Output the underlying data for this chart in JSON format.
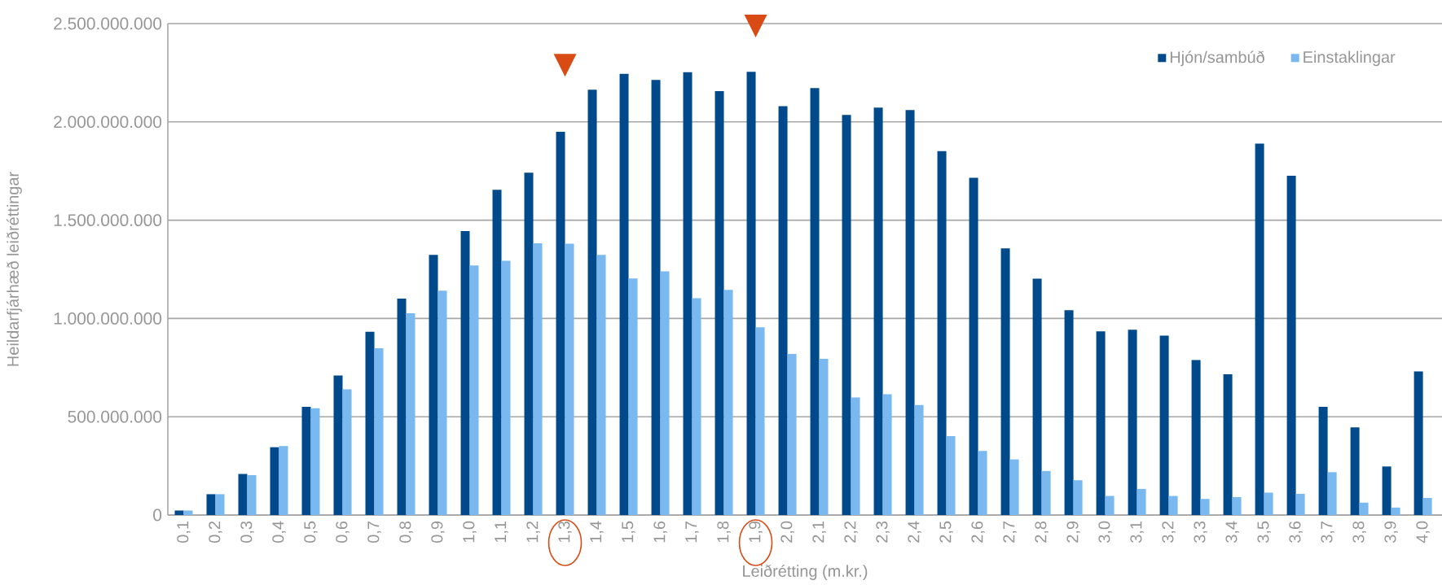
{
  "chart_data": {
    "type": "bar",
    "xlabel": "Leiðrétting (m.kr.)",
    "ylabel": "Heildarfjárhæð leiðréttingar",
    "categories": [
      "0,1",
      "0,2",
      "0,3",
      "0,4",
      "0,5",
      "0,6",
      "0,7",
      "0,8",
      "0,9",
      "1,0",
      "1,1",
      "1,2",
      "1,3",
      "1,4",
      "1,5",
      "1,6",
      "1,7",
      "1,8",
      "1,9",
      "2,0",
      "2,1",
      "2,2",
      "2,3",
      "2,4",
      "2,5",
      "2,6",
      "2,7",
      "2,8",
      "2,9",
      "3,0",
      "3,1",
      "3,2",
      "3,3",
      "3,4",
      "3,5",
      "3,6",
      "3,7",
      "3,8",
      "3,9",
      "4,0"
    ],
    "series": [
      {
        "name": "Hjón/sambúð",
        "color": "#004a8c",
        "values": [
          23000000,
          106000000,
          209000000,
          345000000,
          550000000,
          710000000,
          932000000,
          1101000000,
          1323000000,
          1445000000,
          1655000000,
          1741000000,
          1950000000,
          2164000000,
          2244000000,
          2213000000,
          2253000000,
          2156000000,
          2255000000,
          2080000000,
          2172000000,
          2035000000,
          2073000000,
          2060000000,
          1851000000,
          1716000000,
          1357000000,
          1202000000,
          1042000000,
          934000000,
          943000000,
          913000000,
          788000000,
          716000000,
          1889000000,
          1726000000,
          551000000,
          446000000,
          247000000,
          731000000
        ]
      },
      {
        "name": "Einstaklingar",
        "color": "#7ab8f0",
        "values": [
          23000000,
          106000000,
          203000000,
          351000000,
          543000000,
          640000000,
          849000000,
          1027000000,
          1141000000,
          1270000000,
          1293000000,
          1382000000,
          1380000000,
          1323000000,
          1203000000,
          1240000000,
          1103000000,
          1145000000,
          955000000,
          820000000,
          795000000,
          598000000,
          615000000,
          560000000,
          402000000,
          326000000,
          283000000,
          224000000,
          177000000,
          97000000,
          133000000,
          97000000,
          82000000,
          91000000,
          114000000,
          108000000,
          218000000,
          63000000,
          38000000,
          87000000
        ]
      }
    ],
    "ylim": [
      0,
      2500000000
    ],
    "yticks": [
      0,
      {
        "value": 500000000,
        "label": "500.000.000"
      },
      {
        "value": 1000000000,
        "label": "1.000.000.000"
      },
      {
        "value": 1500000000,
        "label": "1.500.000.000"
      },
      {
        "value": 2000000000,
        "label": "2.000.000.000"
      },
      {
        "value": 2500000000,
        "label": "2.500.000.000"
      }
    ],
    "grid": "y",
    "legend": "top right"
  }
}
